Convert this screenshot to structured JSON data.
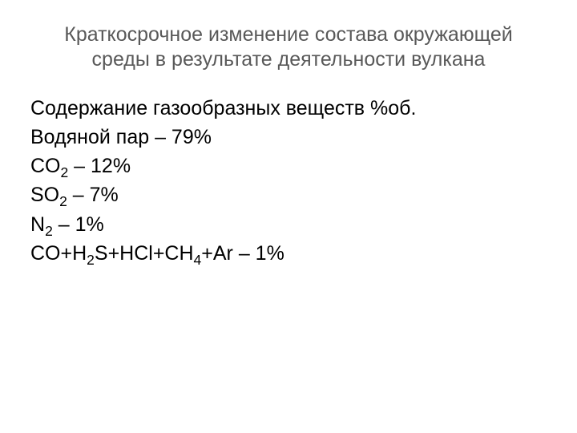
{
  "title_line1": "Краткосрочное изменение состава окружающей",
  "title_line2": "среды в результате деятельности вулкана",
  "body_heading": "Содержание газообразных веществ %об.",
  "rows": {
    "r0_label": "Водяной пар",
    "r0_value": " – 79%",
    "r1_formula_1": "CO",
    "r1_sub_1": "2",
    "r1_value": " – 12%",
    "r2_formula_1": "SO",
    "r2_sub_1": "2",
    "r2_value": " – 7%",
    "r3_formula_1": "N",
    "r3_sub_1": "2",
    "r3_value": " – 1%",
    "r4_p1": "CO+H",
    "r4_s1": "2",
    "r4_p2": "S+HCl+CH",
    "r4_s2": "4",
    "r4_p3": "+Ar – 1%"
  }
}
